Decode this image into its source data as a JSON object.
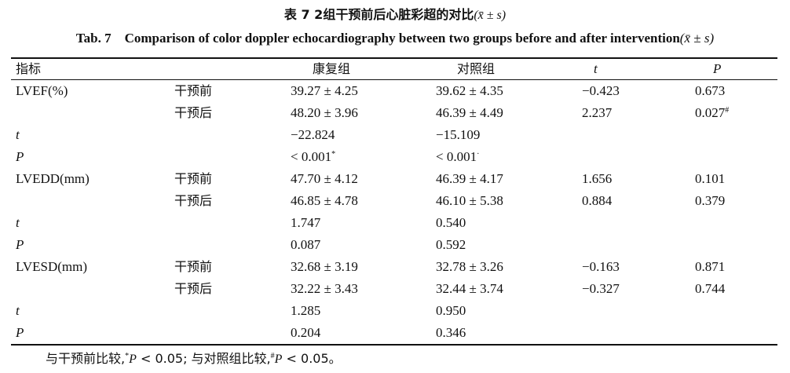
{
  "title": {
    "cn_prefix": "表 7 2组干预前后心脏彩超的对比",
    "cn_stat": "(x̄ ± s)",
    "en_label": "Tab. 7",
    "en_text": "Comparison of color doppler echocardiography between two groups before and after intervention",
    "en_stat": "(x̄ ± s)"
  },
  "header": {
    "indicator": "指标",
    "rehab": "康复组",
    "control": "对照组",
    "t": "t",
    "p": "P"
  },
  "rows": [
    {
      "indicator": "LVEF(%)",
      "phase": "干预前",
      "rehab": "39.27 ± 4.25",
      "control": "39.62 ± 4.35",
      "t": "−0.423",
      "p": "0.673",
      "p_mark": "",
      "rehab_mark": "",
      "control_mark": ""
    },
    {
      "indicator": "",
      "phase": "干预后",
      "rehab": "48.20 ± 3.96",
      "control": "46.39 ± 4.49",
      "t": "2.237",
      "p": "0.027",
      "p_mark": "#",
      "rehab_mark": "",
      "control_mark": ""
    },
    {
      "indicator": "t",
      "phase": "",
      "rehab": "−22.824",
      "control": "−15.109",
      "t": "",
      "p": "",
      "p_mark": "",
      "rehab_mark": "",
      "control_mark": ""
    },
    {
      "indicator": "P",
      "phase": "",
      "rehab": "< 0.001",
      "control": "< 0.001",
      "t": "",
      "p": "",
      "p_mark": "",
      "rehab_mark": "*",
      "control_mark": "·"
    },
    {
      "indicator": "LVEDD(mm)",
      "phase": "干预前",
      "rehab": "47.70 ± 4.12",
      "control": "46.39 ± 4.17",
      "t": "1.656",
      "p": "0.101",
      "p_mark": "",
      "rehab_mark": "",
      "control_mark": ""
    },
    {
      "indicator": "",
      "phase": "干预后",
      "rehab": "46.85 ± 4.78",
      "control": "46.10 ± 5.38",
      "t": "0.884",
      "p": "0.379",
      "p_mark": "",
      "rehab_mark": "",
      "control_mark": ""
    },
    {
      "indicator": "t",
      "phase": "",
      "rehab": "1.747",
      "control": "0.540",
      "t": "",
      "p": "",
      "p_mark": "",
      "rehab_mark": "",
      "control_mark": ""
    },
    {
      "indicator": "P",
      "phase": "",
      "rehab": "0.087",
      "control": "0.592",
      "t": "",
      "p": "",
      "p_mark": "",
      "rehab_mark": "",
      "control_mark": ""
    },
    {
      "indicator": "LVESD(mm)",
      "phase": "干预前",
      "rehab": "32.68 ± 3.19",
      "control": "32.78 ± 3.26",
      "t": "−0.163",
      "p": "0.871",
      "p_mark": "",
      "rehab_mark": "",
      "control_mark": ""
    },
    {
      "indicator": "",
      "phase": "干预后",
      "rehab": "32.22 ± 3.43",
      "control": "32.44 ± 3.74",
      "t": "−0.327",
      "p": "0.744",
      "p_mark": "",
      "rehab_mark": "",
      "control_mark": ""
    },
    {
      "indicator": "t",
      "phase": "",
      "rehab": "1.285",
      "control": "0.950",
      "t": "",
      "p": "",
      "p_mark": "",
      "rehab_mark": "",
      "control_mark": ""
    },
    {
      "indicator": "P",
      "phase": "",
      "rehab": "0.204",
      "control": "0.346",
      "t": "",
      "p": "",
      "p_mark": "",
      "rehab_mark": "",
      "control_mark": ""
    }
  ],
  "footnote": {
    "part1": "与干预前比较,",
    "mark1": "*",
    "part2": "P",
    "part3": " < 0.05; 与对照组比较,",
    "mark2": "#",
    "part4": "P",
    "part5": " < 0.05。"
  }
}
